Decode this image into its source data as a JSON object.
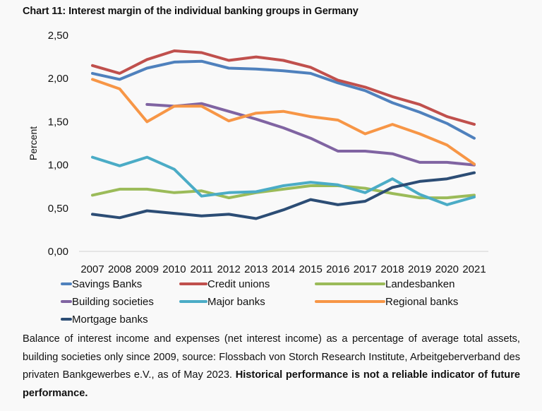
{
  "title": "Chart 11: Interest margin of the individual banking groups in Germany",
  "caption": {
    "text": "Balance of interest income and expenses (net interest income) as a percentage of average total assets, building societies only since 2009, source: Flossbach von Storch Research Institute, Arbeitgeberverband des privaten Bankgewerbes e.V., as of May 2023. ",
    "bold": "Historical performance is not a reliable indicator of future performance."
  },
  "chart_data": {
    "type": "line",
    "title": "Chart 11: Interest margin of the individual banking groups in Germany",
    "xlabel": "",
    "ylabel": "Percent",
    "ylim": [
      0,
      2.5
    ],
    "yticks": [
      "0,00",
      "0,50",
      "1,00",
      "1,50",
      "2,00",
      "2,50"
    ],
    "ytick_values": [
      0,
      0.5,
      1.0,
      1.5,
      2.0,
      2.5
    ],
    "grid": false,
    "legend_position": "bottom",
    "categories": [
      "2007",
      "2008",
      "2009",
      "2010",
      "2011",
      "2012",
      "2013",
      "2014",
      "2015",
      "2016",
      "2017",
      "2018",
      "2019",
      "2020",
      "2021"
    ],
    "series": [
      {
        "name": "Savings Banks",
        "color": "#4f81bd",
        "values": [
          2.06,
          1.99,
          2.12,
          2.19,
          2.2,
          2.12,
          2.11,
          2.09,
          2.06,
          1.95,
          1.86,
          1.72,
          1.61,
          1.48,
          1.31
        ]
      },
      {
        "name": "Credit unions",
        "color": "#c0504d",
        "values": [
          2.15,
          2.06,
          2.22,
          2.32,
          2.3,
          2.21,
          2.25,
          2.21,
          2.13,
          1.98,
          1.9,
          1.79,
          1.7,
          1.56,
          1.47
        ]
      },
      {
        "name": "Landesbanken",
        "color": "#9bbb59",
        "values": [
          0.65,
          0.72,
          0.72,
          0.68,
          0.7,
          0.62,
          0.68,
          0.72,
          0.76,
          0.76,
          0.73,
          0.67,
          0.62,
          0.62,
          0.65
        ]
      },
      {
        "name": "Building societies",
        "color": "#8064a2",
        "values": [
          null,
          null,
          1.7,
          1.68,
          1.71,
          1.62,
          1.53,
          1.43,
          1.31,
          1.16,
          1.16,
          1.13,
          1.03,
          1.03,
          1.0
        ]
      },
      {
        "name": "Major banks",
        "color": "#4bacc6",
        "values": [
          1.09,
          0.99,
          1.09,
          0.95,
          0.64,
          0.68,
          0.69,
          0.76,
          0.8,
          0.77,
          0.68,
          0.84,
          0.66,
          0.54,
          0.63
        ]
      },
      {
        "name": "Regional banks",
        "color": "#f79646",
        "values": [
          1.99,
          1.88,
          1.5,
          1.68,
          1.68,
          1.51,
          1.6,
          1.62,
          1.56,
          1.52,
          1.36,
          1.47,
          1.36,
          1.23,
          1.01
        ]
      },
      {
        "name": "Mortgage banks",
        "color": "#2c4d75",
        "values": [
          0.43,
          0.39,
          0.47,
          0.44,
          0.41,
          0.43,
          0.38,
          0.48,
          0.6,
          0.54,
          0.58,
          0.74,
          0.81,
          0.84,
          0.91
        ]
      }
    ]
  }
}
